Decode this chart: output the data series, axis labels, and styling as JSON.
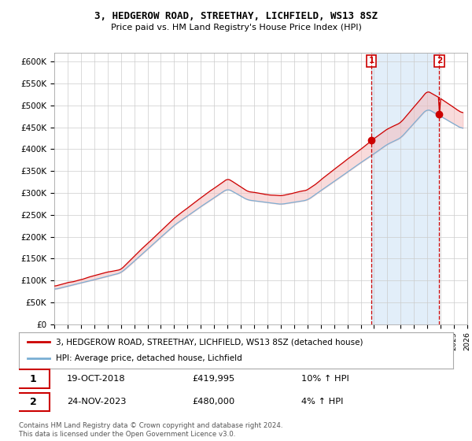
{
  "title": "3, HEDGEROW ROAD, STREETHAY, LICHFIELD, WS13 8SZ",
  "subtitle": "Price paid vs. HM Land Registry's House Price Index (HPI)",
  "hpi_label": "HPI: Average price, detached house, Lichfield",
  "property_label": "3, HEDGEROW ROAD, STREETHAY, LICHFIELD, WS13 8SZ (detached house)",
  "red_color": "#cc0000",
  "blue_color": "#7aafd4",
  "fill_color": "#d0e4f5",
  "annotation1_date": "19-OCT-2018",
  "annotation1_price": "£419,995",
  "annotation1_hpi": "10% ↑ HPI",
  "annotation1_year": 2018.8,
  "annotation2_date": "24-NOV-2023",
  "annotation2_price": "£480,000",
  "annotation2_hpi": "4% ↑ HPI",
  "annotation2_year": 2023.9,
  "ylim": [
    0,
    620000
  ],
  "xlim_start": 1995,
  "xlim_end": 2026,
  "footer": "Contains HM Land Registry data © Crown copyright and database right 2024.\nThis data is licensed under the Open Government Licence v3.0.",
  "yticks": [
    0,
    50000,
    100000,
    150000,
    200000,
    250000,
    300000,
    350000,
    400000,
    450000,
    500000,
    550000,
    600000
  ],
  "ytick_labels": [
    "£0",
    "£50K",
    "£100K",
    "£150K",
    "£200K",
    "£250K",
    "£300K",
    "£350K",
    "£400K",
    "£450K",
    "£500K",
    "£550K",
    "£600K"
  ]
}
